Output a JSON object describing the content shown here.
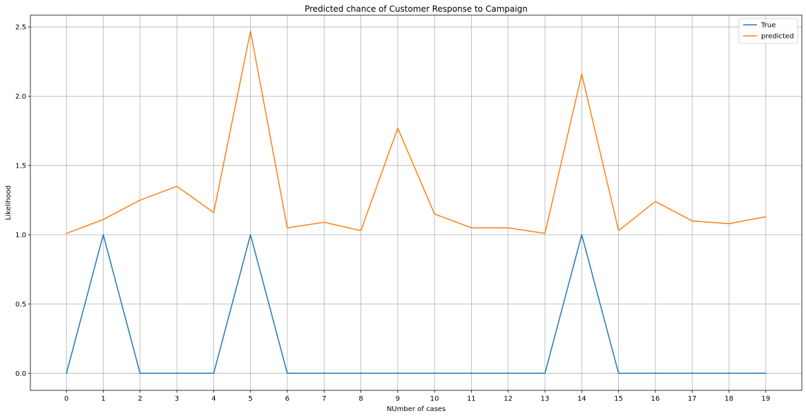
{
  "chart_data": {
    "type": "line",
    "title": "Predicted chance of Customer Response to Campaign",
    "xlabel": "NUmber of cases",
    "ylabel": "Likelihood",
    "x": [
      0,
      1,
      2,
      3,
      4,
      5,
      6,
      7,
      8,
      9,
      10,
      11,
      12,
      13,
      14,
      15,
      16,
      17,
      18,
      19
    ],
    "xlim": [
      -0.98,
      19.98
    ],
    "ylim": [
      -0.123,
      2.585
    ],
    "yticks": [
      0.0,
      0.5,
      1.0,
      1.5,
      2.0,
      2.5
    ],
    "ytick_labels": [
      "0.0",
      "0.5",
      "1.0",
      "1.5",
      "2.0",
      "2.5"
    ],
    "grid": true,
    "legend_position": "top-right",
    "series": [
      {
        "name": "True",
        "color": "#1f77b4",
        "values": [
          0,
          1,
          0,
          0,
          0,
          1,
          0,
          0,
          0,
          0,
          0,
          0,
          0,
          0,
          1,
          0,
          0,
          0,
          0,
          0
        ]
      },
      {
        "name": "predicted",
        "color": "#ff7f0e",
        "values": [
          1.01,
          1.11,
          1.25,
          1.35,
          1.16,
          2.47,
          1.05,
          1.09,
          1.03,
          1.77,
          1.15,
          1.05,
          1.05,
          1.01,
          2.16,
          1.03,
          1.24,
          1.1,
          1.08,
          1.13
        ]
      }
    ]
  }
}
